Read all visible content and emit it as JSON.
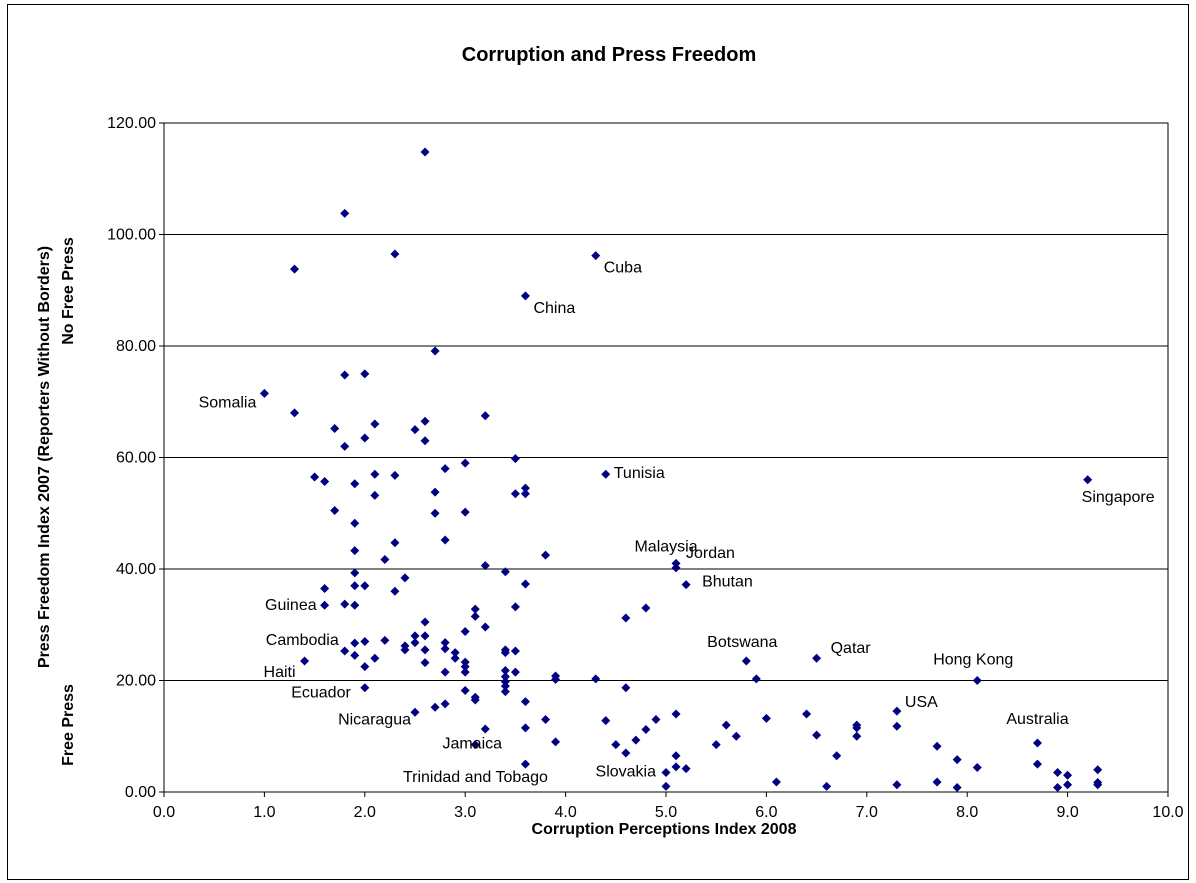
{
  "chart_data": {
    "type": "scatter",
    "title": "Corruption and Press Freedom",
    "xlabel": "Corruption Perceptions Index 2008",
    "ylabel_lines": [
      "Press Freedom Index 2007 (Reporters Without Borders)",
      "Free Press",
      "No Free Press"
    ],
    "xlim": [
      0,
      10
    ],
    "ylim": [
      0,
      120
    ],
    "x_ticks": [
      "0.0",
      "1.0",
      "2.0",
      "3.0",
      "4.0",
      "5.0",
      "6.0",
      "7.0",
      "8.0",
      "9.0",
      "10.0"
    ],
    "y_ticks": [
      "0.00",
      "20.00",
      "40.00",
      "60.00",
      "80.00",
      "100.00",
      "120.00"
    ],
    "grid": "horizontal",
    "marker_color": "#000080",
    "points": [
      [
        2.6,
        114.8
      ],
      [
        1.8,
        103.8
      ],
      [
        1.3,
        93.8
      ],
      [
        2.3,
        96.5
      ],
      [
        4.3,
        96.2
      ],
      [
        3.6,
        89.0
      ],
      [
        2.7,
        79.1
      ],
      [
        1.8,
        74.8
      ],
      [
        2.0,
        75.0
      ],
      [
        1.0,
        71.5
      ],
      [
        1.3,
        68.0
      ],
      [
        3.2,
        67.5
      ],
      [
        2.1,
        66.0
      ],
      [
        2.6,
        66.5
      ],
      [
        1.7,
        65.2
      ],
      [
        2.5,
        65.0
      ],
      [
        2.0,
        63.5
      ],
      [
        2.6,
        63.0
      ],
      [
        1.8,
        62.0
      ],
      [
        3.5,
        59.8
      ],
      [
        3.0,
        59.0
      ],
      [
        2.8,
        58.0
      ],
      [
        4.4,
        57.0
      ],
      [
        9.2,
        56.0
      ],
      [
        2.1,
        57.0
      ],
      [
        2.3,
        56.8
      ],
      [
        1.5,
        56.5
      ],
      [
        1.6,
        55.7
      ],
      [
        1.9,
        55.3
      ],
      [
        3.6,
        54.5
      ],
      [
        3.6,
        53.5
      ],
      [
        3.5,
        53.5
      ],
      [
        2.7,
        53.8
      ],
      [
        2.1,
        53.2
      ],
      [
        1.7,
        50.5
      ],
      [
        2.7,
        50.0
      ],
      [
        3.0,
        50.2
      ],
      [
        1.9,
        48.2
      ],
      [
        2.8,
        45.2
      ],
      [
        2.3,
        44.7
      ],
      [
        1.9,
        43.3
      ],
      [
        3.8,
        42.5
      ],
      [
        2.2,
        41.7
      ],
      [
        5.1,
        41.0
      ],
      [
        5.1,
        40.2
      ],
      [
        3.2,
        40.6
      ],
      [
        3.4,
        39.5
      ],
      [
        1.9,
        39.3
      ],
      [
        2.4,
        38.4
      ],
      [
        5.2,
        37.2
      ],
      [
        3.6,
        37.3
      ],
      [
        1.6,
        36.5
      ],
      [
        1.9,
        37.0
      ],
      [
        2.0,
        37.0
      ],
      [
        2.3,
        36.0
      ],
      [
        1.8,
        33.7
      ],
      [
        1.9,
        33.5
      ],
      [
        1.6,
        33.5
      ],
      [
        3.5,
        33.2
      ],
      [
        4.8,
        33.0
      ],
      [
        3.1,
        32.8
      ],
      [
        3.1,
        31.5
      ],
      [
        4.6,
        31.2
      ],
      [
        2.6,
        30.5
      ],
      [
        3.2,
        29.6
      ],
      [
        3.0,
        28.8
      ],
      [
        2.6,
        28.0
      ],
      [
        2.5,
        28.0
      ],
      [
        2.2,
        27.2
      ],
      [
        2.0,
        27.0
      ],
      [
        1.9,
        26.7
      ],
      [
        2.8,
        26.8
      ],
      [
        2.5,
        26.8
      ],
      [
        2.4,
        26.2
      ],
      [
        2.4,
        25.5
      ],
      [
        2.8,
        25.7
      ],
      [
        3.4,
        25.5
      ],
      [
        3.5,
        25.3
      ],
      [
        3.4,
        25.0
      ],
      [
        2.6,
        25.5
      ],
      [
        1.8,
        25.3
      ],
      [
        2.9,
        25.0
      ],
      [
        1.9,
        24.5
      ],
      [
        2.9,
        24.0
      ],
      [
        6.5,
        24.0
      ],
      [
        2.1,
        24.0
      ],
      [
        1.4,
        23.5
      ],
      [
        5.8,
        23.5
      ],
      [
        2.6,
        23.2
      ],
      [
        3.0,
        23.3
      ],
      [
        3.0,
        22.5
      ],
      [
        2.0,
        22.5
      ],
      [
        3.4,
        21.8
      ],
      [
        3.0,
        21.5
      ],
      [
        2.8,
        21.5
      ],
      [
        3.5,
        21.5
      ],
      [
        3.4,
        20.7
      ],
      [
        3.9,
        20.8
      ],
      [
        3.9,
        20.2
      ],
      [
        4.3,
        20.3
      ],
      [
        5.9,
        20.3
      ],
      [
        8.1,
        20.0
      ],
      [
        3.4,
        19.8
      ],
      [
        3.4,
        19.0
      ],
      [
        2.0,
        18.7
      ],
      [
        4.6,
        18.7
      ],
      [
        3.4,
        18.0
      ],
      [
        3.0,
        18.2
      ],
      [
        3.1,
        17.0
      ],
      [
        3.1,
        16.5
      ],
      [
        3.6,
        16.2
      ],
      [
        2.8,
        15.8
      ],
      [
        2.7,
        15.2
      ],
      [
        2.5,
        14.3
      ],
      [
        7.3,
        14.5
      ],
      [
        5.1,
        14.0
      ],
      [
        6.4,
        14.0
      ],
      [
        4.9,
        13.0
      ],
      [
        3.8,
        13.0
      ],
      [
        6.0,
        13.2
      ],
      [
        4.4,
        12.8
      ],
      [
        5.6,
        12.0
      ],
      [
        6.9,
        12.0
      ],
      [
        7.3,
        11.8
      ],
      [
        4.8,
        11.2
      ],
      [
        3.6,
        11.5
      ],
      [
        6.9,
        11.5
      ],
      [
        3.2,
        11.3
      ],
      [
        5.7,
        10.0
      ],
      [
        6.9,
        10.0
      ],
      [
        6.5,
        10.2
      ],
      [
        4.7,
        9.3
      ],
      [
        3.9,
        9.0
      ],
      [
        4.5,
        8.5
      ],
      [
        5.5,
        8.5
      ],
      [
        3.1,
        8.5
      ],
      [
        7.7,
        8.2
      ],
      [
        8.7,
        8.8
      ],
      [
        4.6,
        7.0
      ],
      [
        5.1,
        6.5
      ],
      [
        6.7,
        6.5
      ],
      [
        7.9,
        5.8
      ],
      [
        3.6,
        5.0
      ],
      [
        8.7,
        5.0
      ],
      [
        5.1,
        4.5
      ],
      [
        5.2,
        4.2
      ],
      [
        8.1,
        4.4
      ],
      [
        9.3,
        4.0
      ],
      [
        5.0,
        3.5
      ],
      [
        8.9,
        3.5
      ],
      [
        9.0,
        3.0
      ],
      [
        6.1,
        1.8
      ],
      [
        7.7,
        1.8
      ],
      [
        9.3,
        1.7
      ],
      [
        9.3,
        1.3
      ],
      [
        9.0,
        1.3
      ],
      [
        5.0,
        1.0
      ],
      [
        6.6,
        1.0
      ],
      [
        7.3,
        1.3
      ],
      [
        8.9,
        0.8
      ],
      [
        7.9,
        0.8
      ]
    ],
    "annotations": [
      {
        "label": "Cuba",
        "x": 4.3,
        "y": 96.2
      },
      {
        "label": "China",
        "x": 3.6,
        "y": 89.0
      },
      {
        "label": "Somalia",
        "x": 1.0,
        "y": 71.5
      },
      {
        "label": "Tunisia",
        "x": 4.4,
        "y": 57.0
      },
      {
        "label": "Singapore",
        "x": 9.2,
        "y": 56.0
      },
      {
        "label": "Malaysia",
        "x": 5.1,
        "y": 41.0
      },
      {
        "label": "Jordan",
        "x": 5.1,
        "y": 40.2
      },
      {
        "label": "Bhutan",
        "x": 5.2,
        "y": 37.2
      },
      {
        "label": "Guinea",
        "x": 1.6,
        "y": 33.5
      },
      {
        "label": "Cambodia",
        "x": 1.8,
        "y": 25.3
      },
      {
        "label": "Haiti",
        "x": 1.4,
        "y": 23.5
      },
      {
        "label": "Botswana",
        "x": 5.8,
        "y": 23.5
      },
      {
        "label": "Qatar",
        "x": 6.5,
        "y": 24.0
      },
      {
        "label": "Hong Kong",
        "x": 8.1,
        "y": 20.0
      },
      {
        "label": "Ecuador",
        "x": 2.0,
        "y": 18.7
      },
      {
        "label": "USA",
        "x": 7.3,
        "y": 14.5
      },
      {
        "label": "Nicaragua",
        "x": 2.5,
        "y": 14.3
      },
      {
        "label": "Australia",
        "x": 8.7,
        "y": 8.8
      },
      {
        "label": "Jamaica",
        "x": 3.1,
        "y": 8.5
      },
      {
        "label": "Trinidad and Tobago",
        "x": 3.6,
        "y": 5.0
      },
      {
        "label": "Slovakia",
        "x": 5.0,
        "y": 3.5
      }
    ]
  }
}
